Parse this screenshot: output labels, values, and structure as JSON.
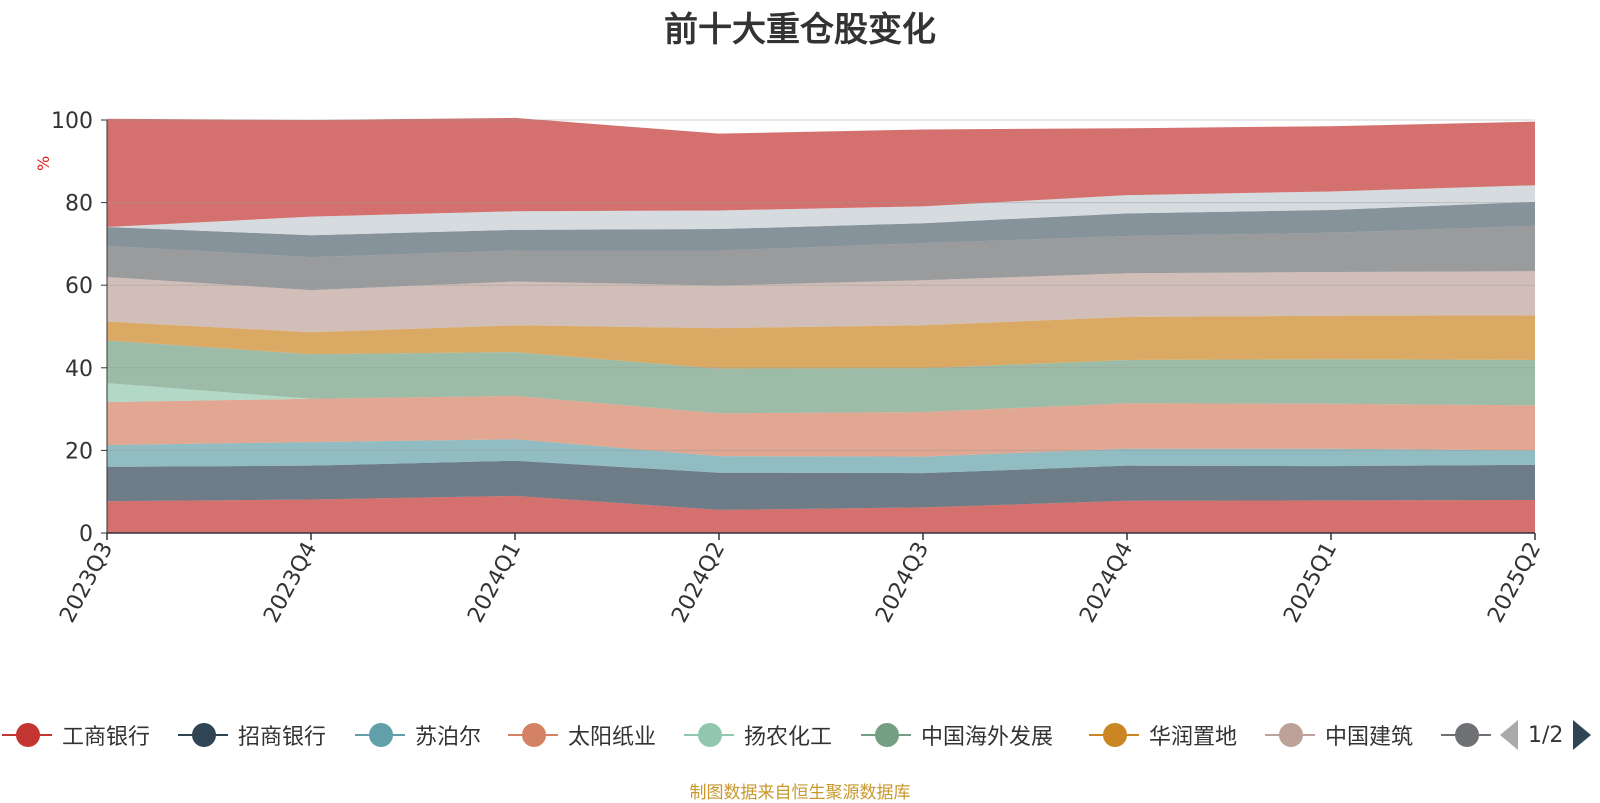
{
  "title": "前十大重仓股变化",
  "footer": "制图数据来自恒生聚源数据库",
  "pager": {
    "text": "1/2"
  },
  "chart_data": {
    "type": "area",
    "stacked": true,
    "title": "前十大重仓股变化",
    "ylabel": "%",
    "ylim": [
      0,
      100
    ],
    "yticks": [
      0,
      20,
      40,
      60,
      80,
      100
    ],
    "grid": true,
    "legend_position": "bottom",
    "categories": [
      "2023Q3",
      "2023Q4",
      "2024Q1",
      "2024Q2",
      "2024Q3",
      "2024Q4",
      "2025Q1",
      "2025Q2"
    ],
    "series": [
      {
        "name": "工商银行",
        "color": "#c23531",
        "values": [
          7.7,
          8.1,
          9.0,
          5.6,
          6.2,
          7.8,
          7.9,
          8.0
        ]
      },
      {
        "name": "招商银行",
        "color": "#2f4554",
        "values": [
          8.3,
          8.2,
          8.5,
          9.0,
          8.3,
          8.5,
          8.3,
          8.5
        ]
      },
      {
        "name": "苏泊尔",
        "color": "#61a0a8",
        "values": [
          5.3,
          5.7,
          5.2,
          4.0,
          4.0,
          4.1,
          4.2,
          3.5
        ]
      },
      {
        "name": "太阳纸业",
        "color": "#d48265",
        "values": [
          10.4,
          10.5,
          10.5,
          10.4,
          10.8,
          11.0,
          10.9,
          10.9
        ]
      },
      {
        "name": "扬农化工",
        "color": "#91c7ae",
        "values": [
          4.6,
          0.0,
          0.0,
          0.0,
          0.0,
          0.0,
          0.0,
          0.0
        ]
      },
      {
        "name": "中国海外发展",
        "color": "#749f83",
        "values": [
          10.3,
          10.8,
          10.6,
          10.8,
          10.6,
          10.5,
          10.8,
          11.0
        ]
      },
      {
        "name": "华润置地",
        "color": "#ca8622",
        "values": [
          4.6,
          5.3,
          6.5,
          9.8,
          10.4,
          10.4,
          10.5,
          10.8
        ]
      },
      {
        "name": "中国建筑",
        "color": "#bda29a",
        "values": [
          10.8,
          10.2,
          10.6,
          10.3,
          10.9,
          10.6,
          10.6,
          10.7
        ]
      },
      {
        "name": "",
        "color": "#6e7074",
        "values": [
          7.5,
          8.0,
          7.5,
          8.5,
          9.0,
          9.0,
          9.5,
          11.0
        ]
      },
      {
        "name": "",
        "color": "#546570",
        "values": [
          4.6,
          5.3,
          5.0,
          5.2,
          4.8,
          5.5,
          5.5,
          5.8
        ]
      },
      {
        "name": "",
        "color": "#c4ccd3",
        "values": [
          0.0,
          4.5,
          4.5,
          4.5,
          4.1,
          4.4,
          4.5,
          4.0
        ]
      },
      {
        "name": "",
        "color": "#c23531",
        "values": [
          26.2,
          23.4,
          22.6,
          18.6,
          18.6,
          16.2,
          15.8,
          15.4
        ]
      }
    ]
  }
}
